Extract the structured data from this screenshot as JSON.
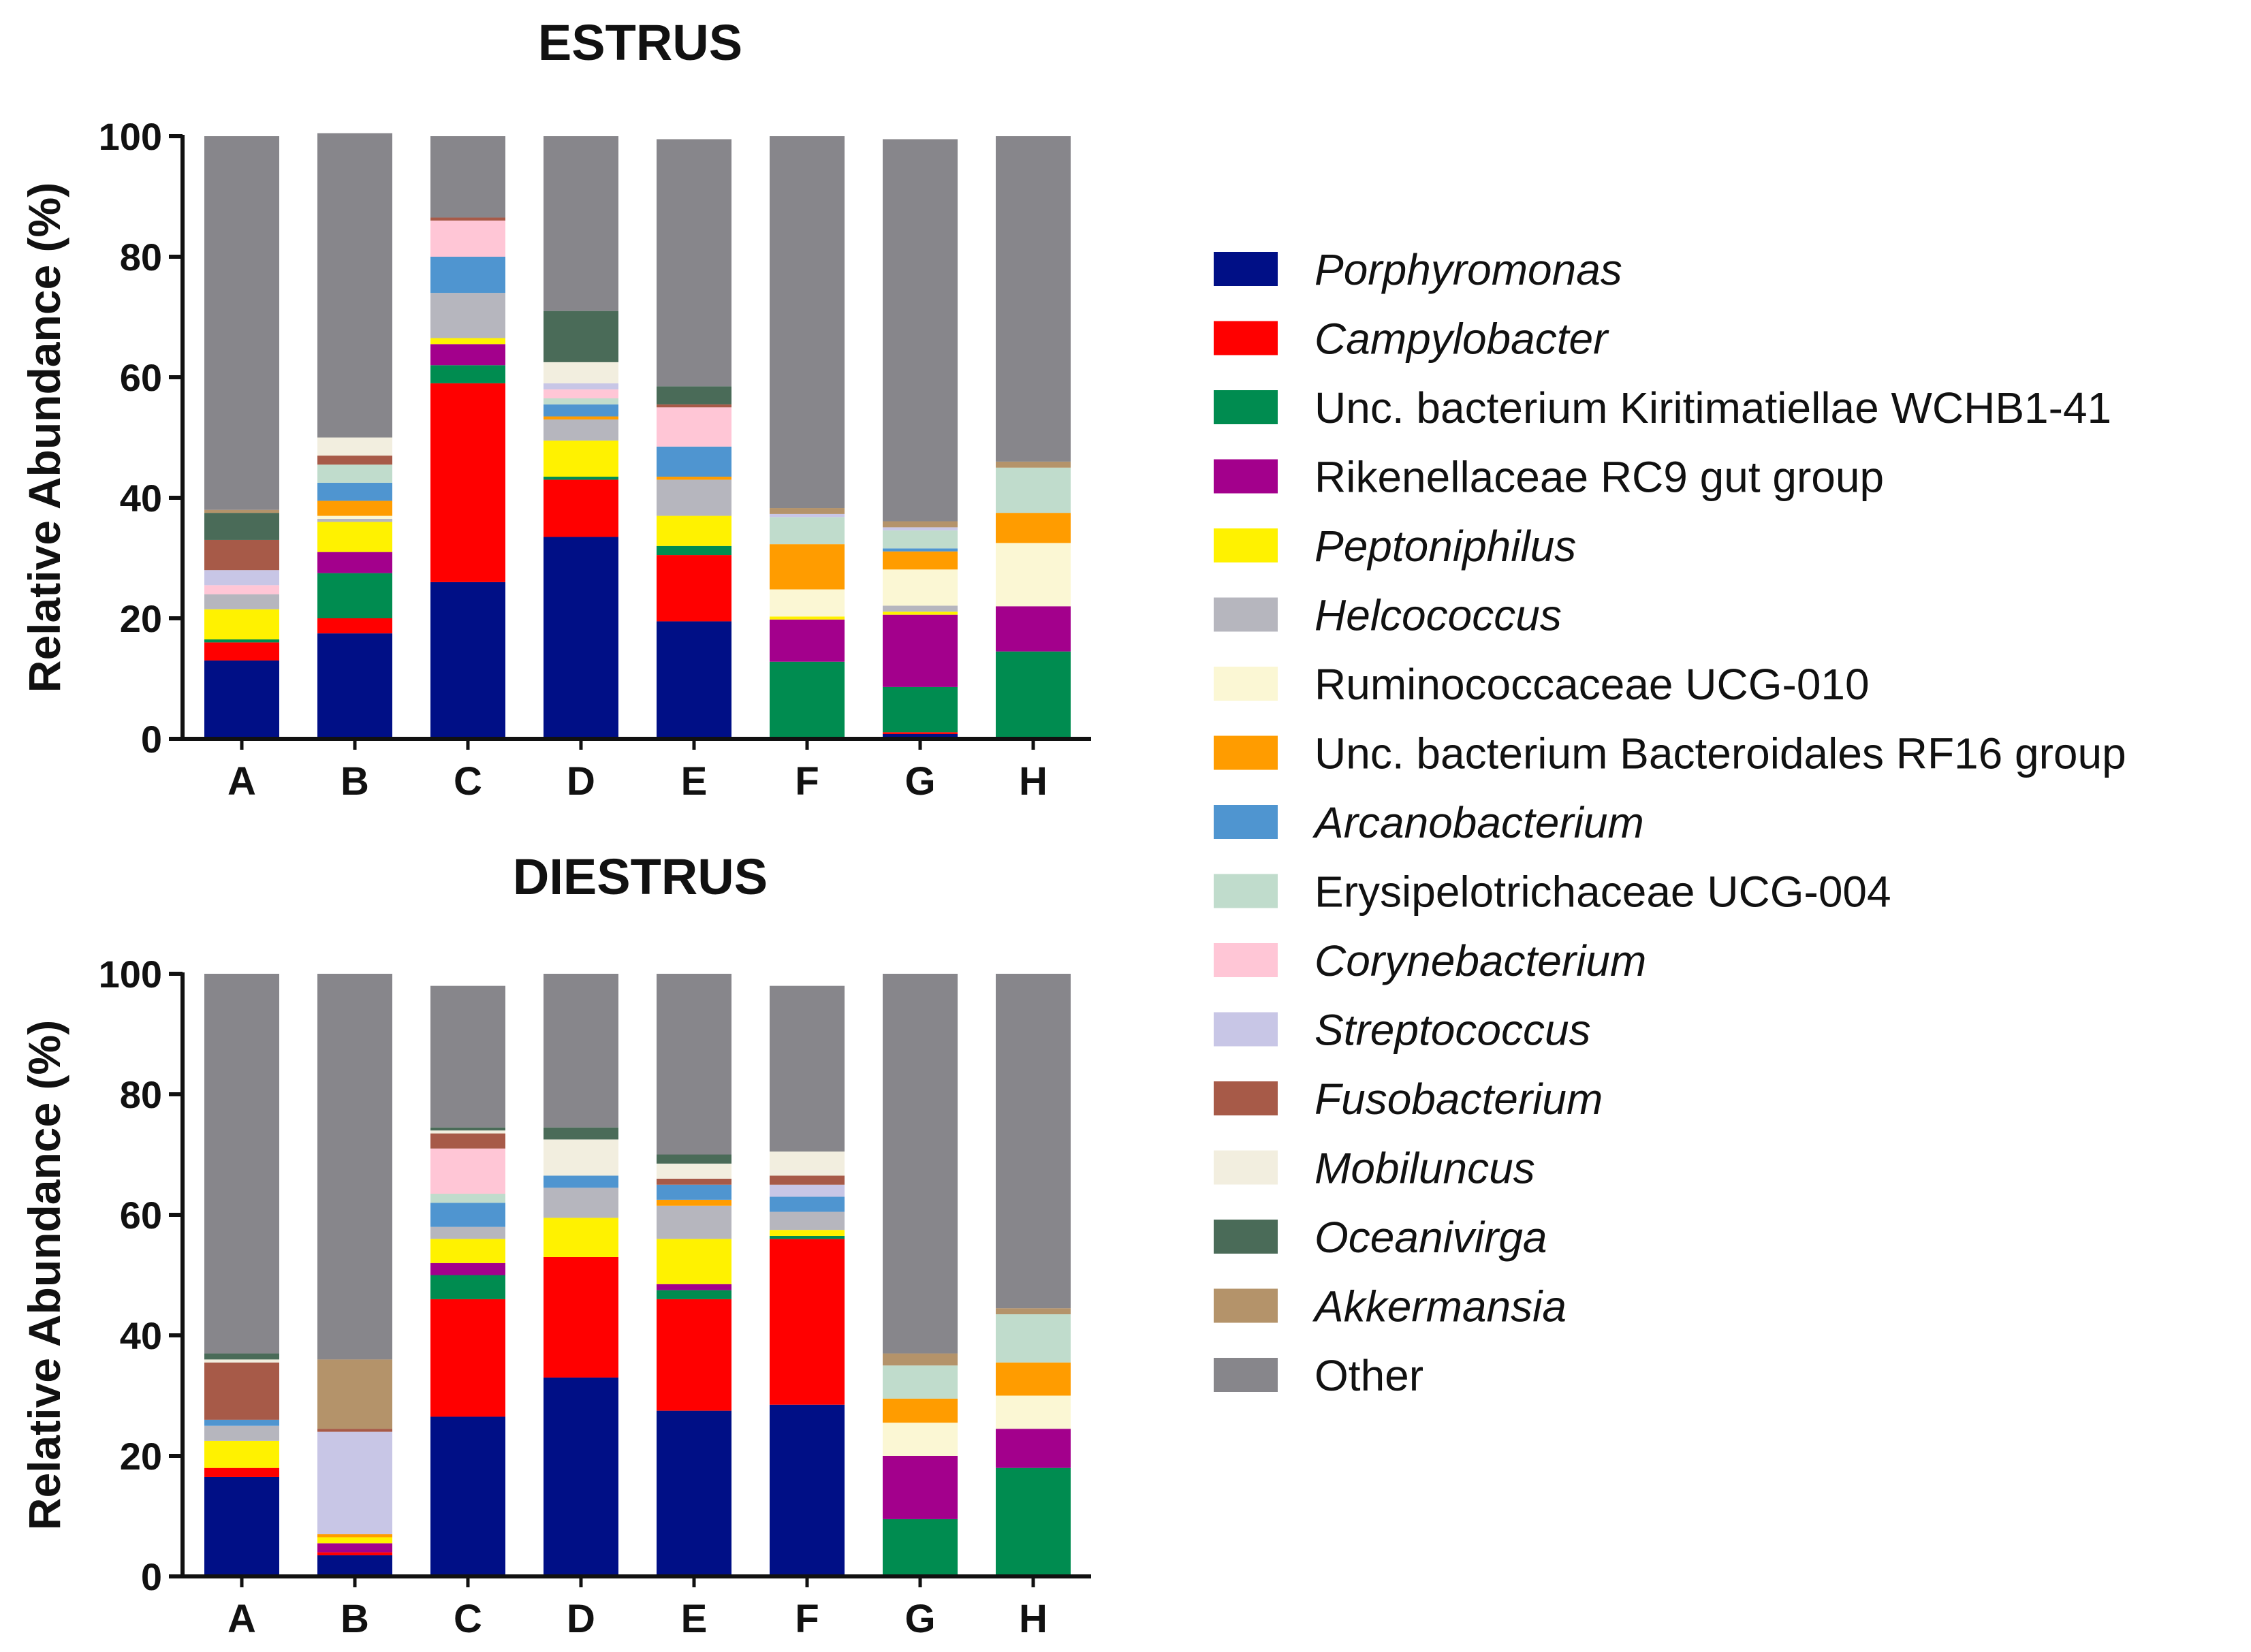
{
  "legend": [
    {
      "name": "Porphyromonas",
      "color": "#000f86",
      "italic": true
    },
    {
      "name": "Campylobacter",
      "color": "#ff0000",
      "italic": true
    },
    {
      "name": "Unc. bacterium Kiritimatiellae WCHB1-41",
      "color": "#008c50",
      "italic": false
    },
    {
      "name": "Rikenellaceae RC9 gut group",
      "color": "#a3008c",
      "italic": false
    },
    {
      "name": "Peptoniphilus",
      "color": "#fff200",
      "italic": true
    },
    {
      "name": "Helcococcus",
      "color": "#b6b6be",
      "italic": true
    },
    {
      "name": "Ruminococcaceae UCG-010",
      "color": "#fbf7d4",
      "italic": false
    },
    {
      "name": "Unc. bacterium Bacteroidales RF16 group",
      "color": "#ff9c00",
      "italic": false
    },
    {
      "name": "Arcanobacterium",
      "color": "#4f95d0",
      "italic": true
    },
    {
      "name": "Erysipelotrichaceae UCG-004",
      "color": "#c0dccc",
      "italic": false
    },
    {
      "name": "Corynebacterium",
      "color": "#ffc6d6",
      "italic": true
    },
    {
      "name": "Streptococcus",
      "color": "#c8c6e6",
      "italic": true
    },
    {
      "name": "Fusobacterium",
      "color": "#a75a48",
      "italic": true
    },
    {
      "name": "Mobiluncus",
      "color": "#f2eedf",
      "italic": true
    },
    {
      "name": "Oceanivirga",
      "color": "#4a6b58",
      "italic": true
    },
    {
      "name": "Akkermansia",
      "color": "#b4936a",
      "italic": true
    },
    {
      "name": "Other",
      "color": "#87868b",
      "italic": false
    }
  ],
  "chart_data": [
    {
      "type": "bar",
      "stacked": true,
      "title": "ESTRUS",
      "xlabel": "",
      "ylabel": "Relative Abundance (%)",
      "ylim": [
        0,
        100
      ],
      "yticks": [
        "0",
        "20",
        "40",
        "60",
        "80",
        "100"
      ],
      "categories": [
        "A",
        "B",
        "C",
        "D",
        "E",
        "F",
        "G",
        "H"
      ],
      "series": [
        {
          "name": "Porphyromonas",
          "values": [
            13,
            17.5,
            26,
            33.5,
            19.5,
            0.3,
            0.8,
            0
          ]
        },
        {
          "name": "Campylobacter",
          "values": [
            3,
            2.5,
            33,
            9.5,
            11,
            0,
            0.3,
            0
          ]
        },
        {
          "name": "Unc. bacterium Kiritimatiellae WCHB1-41",
          "values": [
            0.5,
            7.5,
            3,
            0.5,
            1.5,
            12.5,
            7.5,
            14.5
          ]
        },
        {
          "name": "Rikenellaceae RC9 gut group",
          "values": [
            0,
            3.5,
            3.5,
            0,
            0,
            7,
            12,
            7.5
          ]
        },
        {
          "name": "Peptoniphilus",
          "values": [
            5,
            5,
            1,
            6,
            5,
            0.5,
            0.5,
            0
          ]
        },
        {
          "name": "Helcococcus",
          "values": [
            2.5,
            0.5,
            7.5,
            3.5,
            6,
            0,
            1,
            0
          ]
        },
        {
          "name": "Ruminococcaceae UCG-010",
          "values": [
            0,
            0.5,
            0,
            0,
            0,
            4.5,
            6,
            10.5
          ]
        },
        {
          "name": "Unc. bacterium Bacteroidales RF16 group",
          "values": [
            0,
            2.5,
            0,
            0.5,
            0.5,
            7.5,
            3,
            5
          ]
        },
        {
          "name": "Arcanobacterium",
          "values": [
            0,
            3,
            6,
            2,
            5,
            0,
            0.5,
            0
          ]
        },
        {
          "name": "Erysipelotrichaceae UCG-004",
          "values": [
            0,
            3,
            0,
            1,
            0,
            4.5,
            3,
            7.5
          ]
        },
        {
          "name": "Corynebacterium",
          "values": [
            1.5,
            0,
            6,
            1.5,
            6.5,
            0,
            0,
            0
          ]
        },
        {
          "name": "Streptococcus",
          "values": [
            2.5,
            0,
            0,
            1,
            0,
            0.5,
            0.5,
            0
          ]
        },
        {
          "name": "Fusobacterium",
          "values": [
            5,
            1.5,
            0.5,
            0,
            0.5,
            0,
            0,
            0
          ]
        },
        {
          "name": "Mobiluncus",
          "values": [
            0,
            3,
            0,
            3.5,
            0,
            0,
            0,
            0
          ]
        },
        {
          "name": "Oceanivirga",
          "values": [
            4.5,
            0,
            0,
            8.5,
            3,
            0,
            0,
            0
          ]
        },
        {
          "name": "Akkermansia",
          "values": [
            0.5,
            0,
            0,
            0,
            0,
            1,
            1,
            1
          ]
        },
        {
          "name": "Other",
          "values": [
            62,
            50.5,
            13.5,
            29,
            41,
            61.7,
            63.4,
            54
          ]
        }
      ]
    },
    {
      "type": "bar",
      "stacked": true,
      "title": "DIESTRUS",
      "xlabel": "",
      "ylabel": "Relative Abundance (%)",
      "ylim": [
        0,
        100
      ],
      "yticks": [
        "0",
        "20",
        "40",
        "60",
        "80",
        "100"
      ],
      "categories": [
        "A",
        "B",
        "C",
        "D",
        "E",
        "F",
        "G",
        "H"
      ],
      "series": [
        {
          "name": "Porphyromonas",
          "values": [
            16.5,
            3.5,
            26.5,
            33,
            27.5,
            28.5,
            0,
            0
          ]
        },
        {
          "name": "Campylobacter",
          "values": [
            1.5,
            0.5,
            19.5,
            20,
            18.5,
            27.5,
            0,
            0
          ]
        },
        {
          "name": "Unc. bacterium Kiritimatiellae WCHB1-41",
          "values": [
            0,
            0,
            4,
            0,
            1.5,
            0.5,
            9.5,
            18
          ]
        },
        {
          "name": "Rikenellaceae RC9 gut group",
          "values": [
            0,
            1.5,
            2,
            0,
            1,
            0,
            10.5,
            6.5
          ]
        },
        {
          "name": "Peptoniphilus",
          "values": [
            4.5,
            1,
            4,
            6.5,
            7.5,
            1,
            0,
            0
          ]
        },
        {
          "name": "Helcococcus",
          "values": [
            2.5,
            0,
            2,
            5,
            5.5,
            3,
            0,
            0
          ]
        },
        {
          "name": "Ruminococcaceae UCG-010",
          "values": [
            0,
            0,
            0,
            0,
            0,
            0,
            5.5,
            5.5
          ]
        },
        {
          "name": "Unc. bacterium Bacteroidales RF16 group",
          "values": [
            0,
            0.5,
            0,
            0,
            1,
            0,
            4,
            5.5
          ]
        },
        {
          "name": "Arcanobacterium",
          "values": [
            1,
            0,
            4,
            2,
            2.5,
            2.5,
            0,
            0
          ]
        },
        {
          "name": "Erysipelotrichaceae UCG-004",
          "values": [
            0,
            0,
            1.5,
            0,
            0,
            0,
            5.5,
            8
          ]
        },
        {
          "name": "Corynebacterium",
          "values": [
            0,
            0,
            7.5,
            0,
            0,
            0,
            0,
            0
          ]
        },
        {
          "name": "Streptococcus",
          "values": [
            0,
            17,
            0,
            0,
            0,
            2,
            0,
            0
          ]
        },
        {
          "name": "Fusobacterium",
          "values": [
            9.5,
            0.5,
            2.5,
            0,
            1,
            1.5,
            0,
            0
          ]
        },
        {
          "name": "Mobiluncus",
          "values": [
            0.5,
            0,
            0.5,
            6,
            2.5,
            4,
            0,
            0
          ]
        },
        {
          "name": "Oceanivirga",
          "values": [
            1,
            0,
            0.5,
            2,
            1.5,
            0,
            0,
            0
          ]
        },
        {
          "name": "Akkermansia",
          "values": [
            0,
            11.5,
            0,
            0,
            0,
            0,
            2,
            1
          ]
        },
        {
          "name": "Other",
          "values": [
            63,
            64,
            23.5,
            25.5,
            30,
            27.5,
            63,
            55.5
          ]
        }
      ]
    }
  ]
}
